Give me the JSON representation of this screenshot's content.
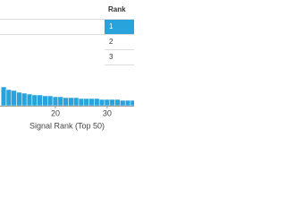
{
  "chart_data": {
    "type": "bar",
    "x_label": "Signal Rank (Top 50)",
    "x": [
      10,
      11,
      12,
      13,
      14,
      15,
      16,
      17,
      18,
      19,
      20,
      21,
      22,
      23,
      24,
      25,
      26,
      27,
      28,
      29,
      30,
      31,
      32,
      33,
      34,
      35
    ],
    "values": [
      21,
      18,
      17,
      15,
      14,
      13,
      12,
      12,
      11,
      11,
      10,
      10,
      9,
      9,
      9,
      8,
      8,
      8,
      8,
      7,
      7,
      7,
      7,
      6,
      6,
      6
    ],
    "color": "#29a3dc",
    "xlim": [
      9.3,
      35.2
    ],
    "xticks": [
      20,
      30
    ],
    "ylim": [
      0,
      118
    ]
  },
  "table": {
    "header": "Rank",
    "rows": [
      "1",
      "2",
      "3"
    ],
    "highlight_color": "#29a3dc"
  }
}
